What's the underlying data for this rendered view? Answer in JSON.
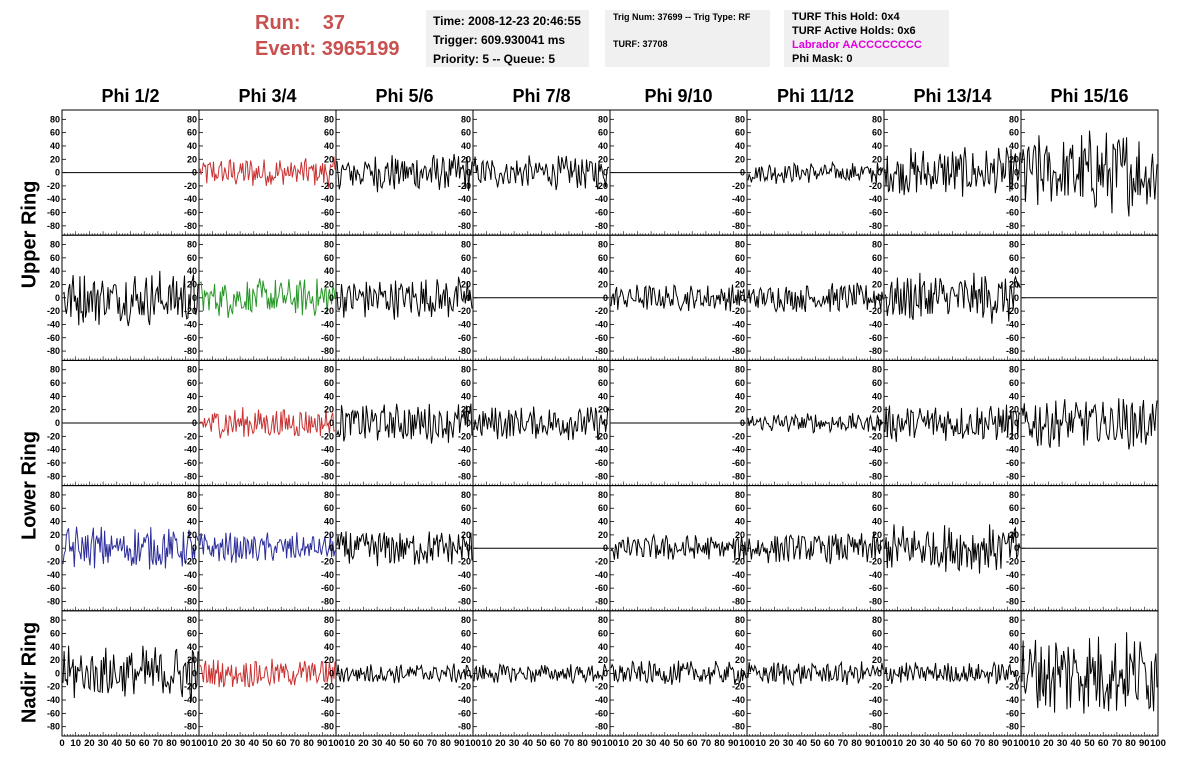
{
  "header": {
    "run_label": "Run:",
    "run_value": "37",
    "event_label": "Event:",
    "event_value": "3965199",
    "time": "Time: 2008-12-23 20:46:55",
    "trigger": "Trigger: 609.930041 ms",
    "priority": "Priority: 5 -- Queue: 5",
    "trig_num": "Trig Num: 37699 -- Trig Type: RF",
    "turf": "TURF: 37708",
    "turf_hold": "TURF This Hold: 0x4",
    "turf_active": "TURF Active Holds: 0x6",
    "labrador": "Labrador AACCCCCCCC",
    "phi_mask": "Phi Mask: 0"
  },
  "colors": {
    "red": "#c83232",
    "green": "#289628",
    "blue": "#2c2c9a",
    "black": "#000000"
  },
  "chart_data": {
    "type": "line",
    "columns": [
      "Phi 1/2",
      "Phi 3/4",
      "Phi 5/6",
      "Phi 7/8",
      "Phi 9/10",
      "Phi 11/12",
      "Phi 13/14",
      "Phi 15/16"
    ],
    "rows": [
      "Upper Ring",
      "Upper Ring",
      "Lower Ring",
      "Lower Ring",
      "Nadir Ring"
    ],
    "ring_labels": [
      {
        "text": "Upper Ring",
        "rows": [
          0,
          1
        ]
      },
      {
        "text": "Lower Ring",
        "rows": [
          2,
          3
        ]
      },
      {
        "text": "Nadir Ring",
        "rows": [
          4
        ]
      }
    ],
    "ylim": [
      -85,
      85
    ],
    "yticks": [
      -80,
      -60,
      -40,
      -20,
      0,
      20,
      40,
      60,
      80
    ],
    "xlim": [
      0,
      100
    ],
    "xticks": [
      0,
      10,
      20,
      30,
      40,
      50,
      60,
      70,
      80,
      90,
      100
    ],
    "panels": [
      [
        {
          "c": "black",
          "a": 0
        },
        {
          "c": "red",
          "a": 14
        },
        {
          "c": "black",
          "a": 17
        },
        {
          "c": "black",
          "a": 15
        },
        {
          "c": "black",
          "a": 0
        },
        {
          "c": "black",
          "a": 10
        },
        {
          "c": "black",
          "a": 22
        },
        {
          "c": "black",
          "a": 38
        }
      ],
      [
        {
          "c": "black",
          "a": 25
        },
        {
          "c": "green",
          "a": 18
        },
        {
          "c": "black",
          "a": 19
        },
        {
          "c": "black",
          "a": 0
        },
        {
          "c": "black",
          "a": 12
        },
        {
          "c": "black",
          "a": 13
        },
        {
          "c": "black",
          "a": 23
        },
        {
          "c": "black",
          "a": 0
        }
      ],
      [
        {
          "c": "black",
          "a": 0
        },
        {
          "c": "red",
          "a": 14
        },
        {
          "c": "black",
          "a": 18
        },
        {
          "c": "black",
          "a": 15
        },
        {
          "c": "black",
          "a": 0
        },
        {
          "c": "black",
          "a": 9
        },
        {
          "c": "black",
          "a": 17
        },
        {
          "c": "black",
          "a": 23
        }
      ],
      [
        {
          "c": "blue",
          "a": 20
        },
        {
          "c": "blue",
          "a": 14
        },
        {
          "c": "black",
          "a": 16
        },
        {
          "c": "black",
          "a": 0
        },
        {
          "c": "black",
          "a": 12
        },
        {
          "c": "black",
          "a": 14
        },
        {
          "c": "black",
          "a": 22
        },
        {
          "c": "black",
          "a": 0
        }
      ],
      [
        {
          "c": "black",
          "a": 25
        },
        {
          "c": "red",
          "a": 13
        },
        {
          "c": "black",
          "a": 9
        },
        {
          "c": "black",
          "a": 9
        },
        {
          "c": "black",
          "a": 11
        },
        {
          "c": "black",
          "a": 11
        },
        {
          "c": "black",
          "a": 10
        },
        {
          "c": "black",
          "a": 38
        }
      ]
    ]
  }
}
